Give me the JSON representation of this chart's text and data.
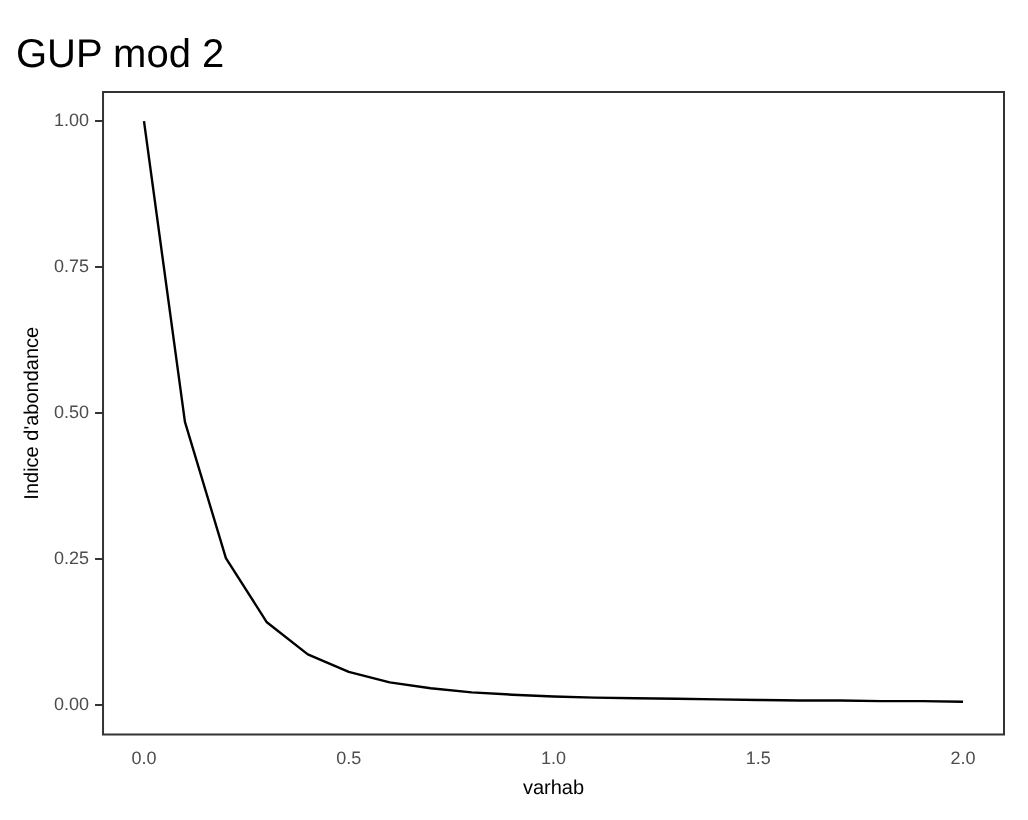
{
  "chart_data": {
    "type": "line",
    "title": "GUP mod 2",
    "xlabel": "varhab",
    "ylabel": "Indice d'abondance",
    "x": [
      0,
      0.1,
      0.2,
      0.3,
      0.4,
      0.5,
      0.6,
      0.7,
      0.8,
      0.9,
      1.0,
      1.1,
      1.2,
      1.3,
      1.4,
      1.5,
      1.6,
      1.7,
      1.8,
      1.9,
      2.0
    ],
    "series": [
      {
        "color": "#000000",
        "values": [
          1.0,
          0.485,
          0.252,
          0.142,
          0.087,
          0.057,
          0.039,
          0.029,
          0.022,
          0.018,
          0.015,
          0.013,
          0.012,
          0.011,
          0.01,
          0.009,
          0.008,
          0.008,
          0.007,
          0.007,
          0.006
        ]
      }
    ],
    "xlim": [
      -0.1,
      2.1
    ],
    "ylim": [
      -0.05,
      1.05
    ],
    "xticks": [
      {
        "value": 0,
        "label": "0.0"
      },
      {
        "value": 0.5,
        "label": "0.5"
      },
      {
        "value": 1,
        "label": "1.0"
      },
      {
        "value": 1.5,
        "label": "1.5"
      },
      {
        "value": 2,
        "label": "2.0"
      }
    ],
    "yticks": [
      {
        "value": 0,
        "label": "0.00"
      },
      {
        "value": 0.25,
        "label": "0.25"
      },
      {
        "value": 0.5,
        "label": "0.50"
      },
      {
        "value": 0.75,
        "label": "0.75"
      },
      {
        "value": 1,
        "label": "1.00"
      }
    ],
    "grid": false,
    "legend": false,
    "marker": "none",
    "line_style": "solid"
  }
}
